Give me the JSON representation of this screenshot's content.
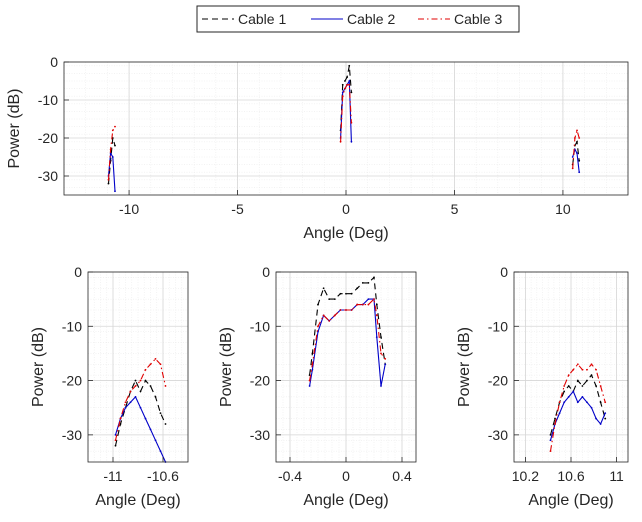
{
  "legend": {
    "entries": [
      {
        "label": "Cable 1",
        "color": "#000000",
        "dash": "dashed"
      },
      {
        "label": "Cable 2",
        "color": "#0000c8",
        "dash": "solid"
      },
      {
        "label": "Cable 3",
        "color": "#e00000",
        "dash": "dashdot"
      }
    ]
  },
  "chart_data": [
    {
      "type": "line",
      "xlabel": "Angle (Deg)",
      "ylabel": "Power (dB)",
      "xlim": [
        -13,
        13
      ],
      "ylim": [
        -35,
        0
      ],
      "xticks": [
        -10,
        -5,
        0,
        5,
        10
      ],
      "yticks": [
        0,
        -10,
        -20,
        -30
      ],
      "grid": true,
      "series": [
        {
          "name": "Cable 1",
          "x": [
            -10.95,
            -10.85,
            -10.75,
            -10.65,
            -0.25,
            -0.15,
            -0.05,
            0.05,
            0.15,
            0.25,
            10.45,
            10.55,
            10.65,
            10.75
          ],
          "y": [
            -32,
            -26,
            -20,
            -22,
            -18,
            -6,
            -5,
            -4,
            -1,
            -8,
            -27,
            -22,
            -21,
            -26
          ]
        },
        {
          "name": "Cable 2",
          "x": [
            -10.95,
            -10.85,
            -10.75,
            -10.65,
            -0.25,
            -0.15,
            -0.05,
            0.05,
            0.15,
            0.25,
            10.45,
            10.55,
            10.65,
            10.75
          ],
          "y": [
            -30,
            -24,
            -25,
            -34,
            -20,
            -8,
            -7,
            -6,
            -5,
            -21,
            -25,
            -23,
            -24,
            -29
          ]
        },
        {
          "name": "Cable 3",
          "x": [
            -10.95,
            -10.85,
            -10.75,
            -10.65,
            -0.25,
            -0.15,
            -0.05,
            0.05,
            0.15,
            0.25,
            10.45,
            10.55,
            10.65,
            10.75
          ],
          "y": [
            -31,
            -23,
            -18,
            -17,
            -21,
            -9,
            -7,
            -6,
            -6,
            -16,
            -28,
            -20,
            -18,
            -20
          ]
        }
      ]
    },
    {
      "type": "line",
      "xlabel": "Angle (Deg)",
      "ylabel": "Power (dB)",
      "xlim": [
        -11.2,
        -10.4
      ],
      "ylim": [
        -35,
        0
      ],
      "xticks": [
        -11,
        -10.6
      ],
      "xticklabels": [
        "-11",
        "-10.6"
      ],
      "yticks": [
        0,
        -10,
        -20,
        -30
      ],
      "grid": true,
      "series": [
        {
          "name": "Cable 1",
          "x": [
            -10.98,
            -10.94,
            -10.9,
            -10.86,
            -10.82,
            -10.78,
            -10.74,
            -10.7,
            -10.66,
            -10.62,
            -10.58
          ],
          "y": [
            -32,
            -28,
            -25,
            -22,
            -20,
            -22,
            -20,
            -21,
            -23,
            -26,
            -28
          ]
        },
        {
          "name": "Cable 2",
          "x": [
            -10.98,
            -10.94,
            -10.9,
            -10.86,
            -10.82,
            -10.78,
            -10.74,
            -10.7,
            -10.66,
            -10.62,
            -10.58
          ],
          "y": [
            -30,
            -27,
            -25,
            -24,
            -23,
            -25,
            -27,
            -29,
            -31,
            -33,
            -35
          ]
        },
        {
          "name": "Cable 3",
          "x": [
            -10.98,
            -10.94,
            -10.9,
            -10.86,
            -10.82,
            -10.78,
            -10.74,
            -10.7,
            -10.66,
            -10.62,
            -10.58
          ],
          "y": [
            -31,
            -27,
            -24,
            -22,
            -21,
            -20,
            -18,
            -17,
            -16,
            -17,
            -21
          ]
        }
      ]
    },
    {
      "type": "line",
      "xlabel": "Angle (Deg)",
      "ylabel": "Power (dB)",
      "xlim": [
        -0.5,
        0.5
      ],
      "ylim": [
        -35,
        0
      ],
      "xticks": [
        -0.4,
        0,
        0.4
      ],
      "xticklabels": [
        "-0.4",
        "0",
        "0.4"
      ],
      "yticks": [
        0,
        -10,
        -20,
        -30
      ],
      "grid": true,
      "series": [
        {
          "name": "Cable 1",
          "x": [
            -0.26,
            -0.24,
            -0.2,
            -0.16,
            -0.12,
            -0.08,
            -0.04,
            0,
            0.04,
            0.08,
            0.12,
            0.16,
            0.2,
            0.22,
            0.25,
            0.28
          ],
          "y": [
            -19,
            -15,
            -6,
            -3,
            -5,
            -5,
            -4,
            -4,
            -4,
            -3,
            -2,
            -2,
            -1,
            -6,
            -12,
            -17
          ]
        },
        {
          "name": "Cable 2",
          "x": [
            -0.26,
            -0.24,
            -0.2,
            -0.16,
            -0.12,
            -0.08,
            -0.04,
            0,
            0.04,
            0.08,
            0.12,
            0.16,
            0.2,
            0.22,
            0.25,
            0.28
          ],
          "y": [
            -21,
            -18,
            -11,
            -8,
            -9,
            -8,
            -7,
            -7,
            -7,
            -6,
            -6,
            -5,
            -5,
            -12,
            -21,
            -17
          ]
        },
        {
          "name": "Cable 3",
          "x": [
            -0.26,
            -0.24,
            -0.2,
            -0.16,
            -0.12,
            -0.08,
            -0.04,
            0,
            0.04,
            0.08,
            0.12,
            0.16,
            0.2,
            0.22,
            0.25,
            0.28
          ],
          "y": [
            -20,
            -17,
            -10,
            -8,
            -9,
            -8,
            -7,
            -7,
            -7,
            -6,
            -6,
            -6,
            -5,
            -8,
            -15,
            -16
          ]
        }
      ]
    },
    {
      "type": "line",
      "xlabel": "Angle (Deg)",
      "ylabel": "Power (dB)",
      "xlim": [
        10.1,
        11.1
      ],
      "ylim": [
        -35,
        0
      ],
      "xticks": [
        10.2,
        10.6,
        11
      ],
      "xticklabels": [
        "10.2",
        "10.6",
        "11"
      ],
      "yticks": [
        0,
        -10,
        -20,
        -30
      ],
      "grid": true,
      "series": [
        {
          "name": "Cable 1",
          "x": [
            10.42,
            10.46,
            10.5,
            10.54,
            10.58,
            10.62,
            10.66,
            10.7,
            10.74,
            10.78,
            10.82,
            10.86,
            10.9
          ],
          "y": [
            -30,
            -27,
            -24,
            -22,
            -21,
            -22,
            -20,
            -21,
            -20,
            -19,
            -21,
            -24,
            -27
          ]
        },
        {
          "name": "Cable 2",
          "x": [
            10.42,
            10.46,
            10.5,
            10.54,
            10.58,
            10.62,
            10.66,
            10.7,
            10.74,
            10.78,
            10.82,
            10.86,
            10.9
          ],
          "y": [
            -31,
            -28,
            -26,
            -24,
            -23,
            -22,
            -24,
            -23,
            -24,
            -25,
            -27,
            -28,
            -26
          ]
        },
        {
          "name": "Cable 3",
          "x": [
            10.42,
            10.46,
            10.5,
            10.54,
            10.58,
            10.62,
            10.66,
            10.7,
            10.74,
            10.78,
            10.82,
            10.86,
            10.9
          ],
          "y": [
            -33,
            -28,
            -24,
            -21,
            -19,
            -18,
            -17,
            -18,
            -18,
            -17,
            -18,
            -21,
            -24
          ]
        }
      ]
    }
  ]
}
